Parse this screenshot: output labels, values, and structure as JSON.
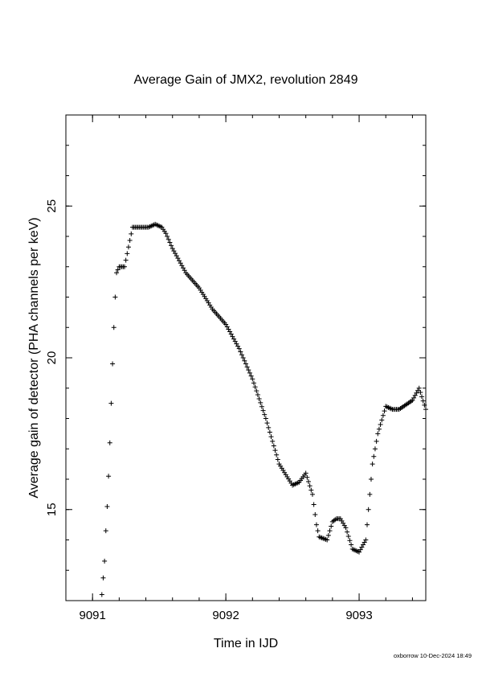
{
  "chart_data": {
    "type": "scatter",
    "marker": "plus",
    "title": "Average Gain of JMX2, revolution 2849",
    "xlabel": "Time in IJD",
    "ylabel": "Average gain of detector (PHA channels per keV)",
    "xlim": [
      9090.8,
      9093.5
    ],
    "ylim": [
      12.0,
      28.0
    ],
    "x_ticks": [
      9091,
      9092,
      9093
    ],
    "x_tick_labels": [
      "9091",
      "9092",
      "9093"
    ],
    "y_ticks": [
      15,
      20,
      25
    ],
    "y_tick_labels": [
      "15",
      "20",
      "25"
    ],
    "grid": false,
    "footer": "oxborrow 10-Dec-2024 18:49",
    "series": [
      {
        "color": "#000000",
        "x": [
          9091.07,
          9091.09,
          9091.1,
          9091.11,
          9091.12,
          9091.13,
          9091.14,
          9091.15,
          9091.16,
          9091.17,
          9091.18,
          9091.2,
          9091.24,
          9091.3,
          9091.35,
          9091.38,
          9091.42,
          9091.47,
          9091.52,
          9091.55,
          9091.6,
          9091.7,
          9091.8,
          9091.9,
          9092.0,
          9092.1,
          9092.2,
          9092.3,
          9092.4,
          9092.5,
          9092.55,
          9092.6,
          9092.65,
          9092.68,
          9092.7,
          9092.73,
          9092.76,
          9092.8,
          9092.83,
          9092.86,
          9092.9,
          9092.95,
          9093.0,
          9093.05,
          9093.08,
          9093.1,
          9093.14,
          9093.2,
          9093.25,
          9093.3,
          9093.4,
          9093.45,
          9093.5
        ],
        "y": [
          12.2,
          13.3,
          14.3,
          15.1,
          16.1,
          17.2,
          18.5,
          19.8,
          21.0,
          22.0,
          22.8,
          23.0,
          23.0,
          24.3,
          24.3,
          24.3,
          24.3,
          24.4,
          24.3,
          24.1,
          23.6,
          22.8,
          22.3,
          21.6,
          21.1,
          20.3,
          19.3,
          18.0,
          16.5,
          15.8,
          15.9,
          16.2,
          15.5,
          14.5,
          14.1,
          14.05,
          14.0,
          14.6,
          14.7,
          14.7,
          14.4,
          13.7,
          13.6,
          14.0,
          15.5,
          16.5,
          17.5,
          18.4,
          18.3,
          18.3,
          18.6,
          19.0,
          18.3
        ]
      }
    ]
  }
}
